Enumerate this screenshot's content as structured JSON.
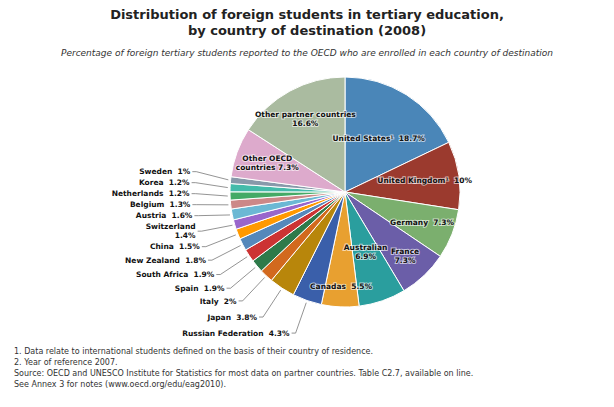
{
  "chart_data": {
    "type": "pie",
    "title": "Distribution of foreign students in tertiary education,\nby country of destination (2008)",
    "subtitle": "Percentage of foreign tertiary students reported to the OECD who are enrolled in each country of destination",
    "annotations": [
      "1. Data relate to international students defined on the basis of their country of residence.",
      "2. Year of reference 2007.",
      "Source: OECD and UNESCO Institute for Statistics for most data on partner countries. Table C2.7, available on line.",
      "See Annex 3 for notes (www.oecd.org/edu/eag2010)."
    ],
    "values": [
      18.7,
      10.0,
      7.3,
      7.3,
      6.9,
      5.5,
      4.3,
      3.8,
      2.0,
      1.9,
      1.9,
      1.8,
      1.5,
      1.4,
      1.6,
      1.3,
      1.2,
      1.2,
      1.0,
      7.3,
      16.6
    ],
    "value_labels": [
      "United States¹  18.7%",
      "United Kingdom¹  10%",
      "Germany  7.3%",
      "France\n7.3%",
      "Australian\n6.9%",
      "Canadas  5.5%",
      "Russian Federation  4.3%",
      "Japan  3.8%",
      "Italy  2%",
      "Spain  1.9%",
      "South Africa  1.9%",
      "New Zealand  1.8%",
      "China  1.5%",
      "Switzerland\n1.4%",
      "Austria  1.6%",
      "Belgium  1.3%",
      "Netherlands  1.2%",
      "Korea  1.2%",
      "Sweden  1%",
      "Other OECD\ncountries 7.3%",
      "Other partner countries\n16.6%"
    ],
    "data_labels": true,
    "colors": [
      "#4A86B8",
      "#9B3A2E",
      "#7BAF6E",
      "#6B5EA8",
      "#2A9E9E",
      "#E8A030",
      "#3A5FAA",
      "#B8860B",
      "#D2691E",
      "#2E7A4A",
      "#CC3333",
      "#5588BB",
      "#FF9900",
      "#9966CC",
      "#6BB8D4",
      "#CC8888",
      "#44AA66",
      "#44BBAA",
      "#8899AA",
      "#DDAACC",
      "#AABBA0"
    ]
  }
}
